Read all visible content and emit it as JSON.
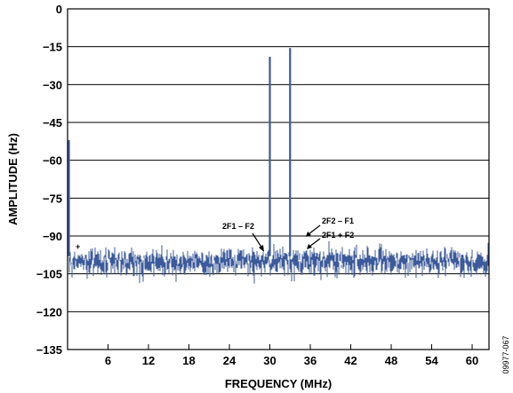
{
  "chart_data": {
    "type": "line",
    "title": "",
    "xlabel": "FREQUENCY (MHz)",
    "ylabel": "AMPLITUDE (Hz)",
    "xlim": [
      0,
      62.5
    ],
    "ylim": [
      -135,
      0
    ],
    "x_ticks": [
      6,
      12,
      18,
      24,
      30,
      36,
      42,
      48,
      54,
      60
    ],
    "y_ticks": [
      0,
      -15,
      -30,
      -45,
      -60,
      -75,
      -90,
      -105,
      -120,
      -135
    ],
    "grid": "horizontal",
    "noise_floor": -100,
    "series": [
      {
        "color": "#3c5a9a",
        "tones": [
          {
            "x": 0.2,
            "y": -52
          },
          {
            "x": 30.0,
            "y": -19
          },
          {
            "x": 33.0,
            "y": -15.5
          }
        ]
      }
    ],
    "annotations": [
      {
        "text": "2F1 – F2",
        "x": 30.0
      },
      {
        "text": "2F2 – F1",
        "x": 35.5
      },
      {
        "text": "2F1 + F2",
        "x": 35.5
      },
      {
        "text": "+",
        "x": 1.5
      }
    ],
    "figure_id": "09977-067"
  }
}
